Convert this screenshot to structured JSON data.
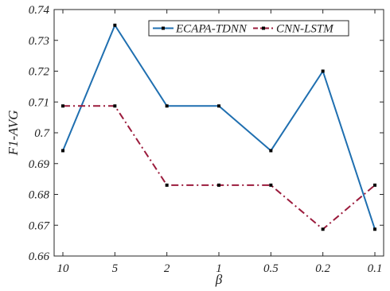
{
  "chart_data": {
    "type": "line",
    "title": "",
    "xlabel": "β",
    "ylabel": "F1-AVG",
    "categories": [
      "10",
      "5",
      "2",
      "1",
      "0.5",
      "0.2",
      "0.1"
    ],
    "ylim": [
      0.66,
      0.74
    ],
    "yticks": [
      0.66,
      0.67,
      0.68,
      0.69,
      0.7,
      0.71,
      0.72,
      0.73,
      0.74
    ],
    "ytick_labels": [
      "0.66",
      "0.67",
      "0.68",
      "0.69",
      "0.7",
      "0.71",
      "0.72",
      "0.73",
      "0.74"
    ],
    "grid": false,
    "legend_position": "top-right",
    "series": [
      {
        "name": "ECAPA-TDNN",
        "values": [
          0.6942,
          0.7349,
          0.7087,
          0.7087,
          0.6942,
          0.72,
          0.6687
        ],
        "color": "#1f6fb0",
        "line_style": "solid",
        "marker": "square"
      },
      {
        "name": "CNN-LSTM",
        "values": [
          0.7087,
          0.7087,
          0.683,
          0.683,
          0.683,
          0.6687,
          0.683
        ],
        "color": "#9b1b3c",
        "line_style": "dash-dot",
        "marker": "square"
      }
    ]
  }
}
